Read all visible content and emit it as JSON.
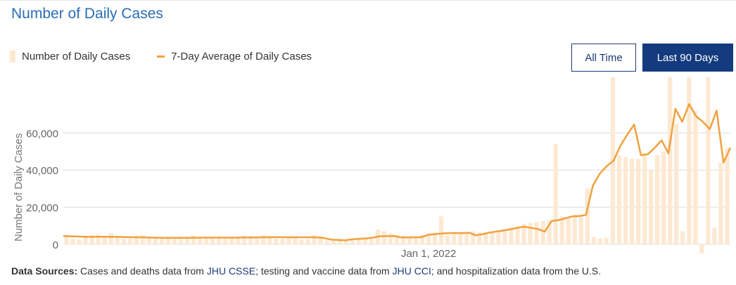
{
  "header": {
    "title": "Number of Daily Cases"
  },
  "legend": {
    "bars_label": "Number of Daily Cases",
    "line_label": "7-Day Average of Daily Cases"
  },
  "buttons": {
    "all_time": "All Time",
    "last_90": "Last 90 Days"
  },
  "footer": {
    "label": "Data Sources:",
    "text1": " Cases and deaths data from ",
    "link1": "JHU CSSE",
    "text2": "; testing and vaccine data from ",
    "link2": "JHU CCI",
    "text3": "; and hospitalization data from the U.S."
  },
  "colors": {
    "bar": "#fde9d2",
    "line": "#f0a13f",
    "title": "#2a6db5",
    "button_active": "#143b7e"
  },
  "chart_data": {
    "type": "bar",
    "ylabel": "Number of Daily Cases",
    "ylim": [
      0,
      90000
    ],
    "yticks": [
      0,
      20000,
      40000,
      60000
    ],
    "ytick_labels": [
      "0",
      "20,000",
      "40,000",
      "60,000"
    ],
    "xtick_labels": [
      "Jan 1, 2022"
    ],
    "xtick_positions": [
      57
    ],
    "grid": true,
    "legend_position": "top-left",
    "bar_values": [
      5000,
      3000,
      2500,
      4500,
      5000,
      5200,
      4000,
      6000,
      3500,
      3000,
      3000,
      4500,
      5000,
      3500,
      3000,
      3500,
      3200,
      3000,
      3000,
      3500,
      4800,
      4000,
      3500,
      4000,
      3500,
      3000,
      3500,
      4000,
      4800,
      4500,
      3000,
      4800,
      4500,
      3000,
      3000,
      3500,
      3500,
      2500,
      2800,
      5000,
      4500,
      2000,
      2000,
      3000,
      2500,
      3000,
      3500,
      3000,
      3000,
      8000,
      7000,
      6000,
      5000,
      4500,
      4000,
      3500,
      5000,
      6000,
      6500,
      15000,
      5000,
      6000,
      5500,
      6000,
      7000,
      6500,
      6500,
      7000,
      7500,
      8000,
      9000,
      10000,
      11000,
      11500,
      12000,
      12500,
      13000,
      54000,
      15000,
      14000,
      16000,
      15000,
      30000,
      4000,
      3000,
      3500,
      90000,
      48000,
      47000,
      46000,
      46000,
      49000,
      40000,
      48000,
      50000,
      90000,
      65000,
      7000,
      90000,
      72000,
      -5000,
      90000,
      9000,
      44000,
      52000
    ],
    "line_values": [
      4500,
      4300,
      4200,
      4100,
      4000,
      4100,
      4100,
      4000,
      4000,
      3900,
      3800,
      3800,
      3700,
      3600,
      3500,
      3500,
      3500,
      3500,
      3500,
      3500,
      3600,
      3600,
      3600,
      3600,
      3600,
      3600,
      3700,
      3700,
      3700,
      3800,
      3800,
      3900,
      3800,
      3800,
      3800,
      3800,
      3800,
      3700,
      3300,
      2500,
      2300,
      2100,
      2700,
      2900,
      3100,
      3600,
      4300,
      4400,
      4500,
      3800,
      3700,
      3800,
      3800,
      5000,
      5500,
      5800,
      6000,
      6100,
      6000,
      6200,
      4800,
      5500,
      6300,
      6900,
      7400,
      8100,
      8800,
      9500,
      8800,
      8300,
      6800,
      12500,
      13000,
      14000,
      15000,
      15200,
      15800,
      31500,
      38000,
      42000,
      45000,
      53000,
      59000,
      64500,
      48000,
      48500,
      52000,
      56000,
      49000,
      73000,
      66000,
      75500,
      69000,
      66000,
      62000,
      72000,
      44000,
      52000
    ]
  }
}
